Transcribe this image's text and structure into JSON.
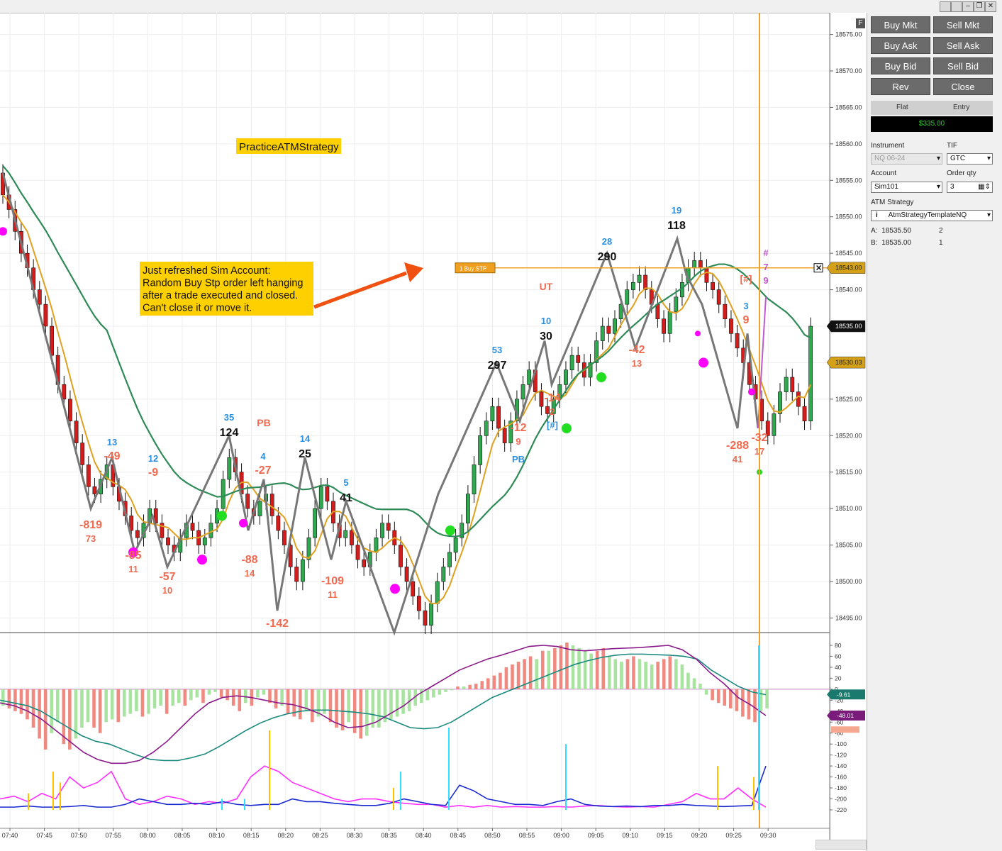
{
  "window": {
    "buttons": [
      "minimize-strip",
      "minimize",
      "restore",
      "close"
    ]
  },
  "chart_data": {
    "type": "candlestick",
    "instrument_label": "PracticeATMStrategy",
    "annotation_text": [
      "Just refreshed Sim Account:",
      "Random Buy Stp order left hanging",
      "after a trade executed and closed.",
      "Can't close it or move it."
    ],
    "price_axis": {
      "min": 18493,
      "max": 18577,
      "ticks": [
        "18575.00",
        "18570.00",
        "18565.00",
        "18560.00",
        "18555.00",
        "18550.00",
        "18545.00",
        "18540.00",
        "18535.00",
        "18530.00",
        "18525.00",
        "18520.00",
        "18515.00",
        "18510.00",
        "18505.00",
        "18500.00",
        "18495.00"
      ]
    },
    "time_axis": {
      "ticks": [
        "07:40",
        "07:45",
        "07:50",
        "07:55",
        "08:00",
        "08:05",
        "08:10",
        "08:15",
        "08:20",
        "08:25",
        "08:30",
        "08:35",
        "08:40",
        "08:45",
        "08:50",
        "08:55",
        "09:00",
        "09:05",
        "09:10",
        "09:15",
        "09:20",
        "09:25",
        "09:30"
      ]
    },
    "price_tags": [
      {
        "label": "18543.00",
        "price": 18543.0,
        "color": "#d4a017"
      },
      {
        "label": "18535.00",
        "price": 18535.0,
        "color": "#111111"
      },
      {
        "label": "18530.03",
        "price": 18530.03,
        "color": "#d4a017"
      }
    ],
    "order_line": {
      "label": "1  Buy STP",
      "price": 18543.0
    },
    "zigzag_labels": [
      {
        "top": "",
        "value": "-819",
        "sub": "73",
        "kind": "low"
      },
      {
        "top": "13",
        "value": "-49",
        "sub": "",
        "kind": "mid"
      },
      {
        "top": "",
        "value": "-85",
        "sub": "11",
        "kind": "low"
      },
      {
        "top": "12",
        "value": "-9",
        "sub": "",
        "kind": "mid"
      },
      {
        "top": "",
        "value": "-57",
        "sub": "10",
        "kind": "low"
      },
      {
        "top": "35",
        "value": "124",
        "sub": "",
        "kind": "high"
      },
      {
        "top": "PB",
        "value": "",
        "sub": "",
        "kind": "tag"
      },
      {
        "top": "4",
        "value": "-27",
        "sub": "",
        "kind": "mid"
      },
      {
        "top": "",
        "value": "-88",
        "sub": "14",
        "kind": "low"
      },
      {
        "top": "",
        "value": "-142",
        "sub": "",
        "kind": "low"
      },
      {
        "top": "14",
        "value": "25",
        "sub": "",
        "kind": "high"
      },
      {
        "top": "",
        "value": "-109",
        "sub": "11",
        "kind": "low"
      },
      {
        "top": "5",
        "value": "41",
        "sub": "",
        "kind": "high"
      },
      {
        "top": "53",
        "value": "297",
        "sub": "",
        "kind": "high"
      },
      {
        "top": "",
        "value": "-12",
        "sub": "9",
        "kind": "low"
      },
      {
        "top": "PB",
        "value": "",
        "sub": "",
        "kind": "tagblue"
      },
      {
        "top": "UT",
        "value": "",
        "sub": "",
        "kind": "tag"
      },
      {
        "top": "10",
        "value": "30",
        "sub": "",
        "kind": "high"
      },
      {
        "top": "",
        "value": "-14",
        "sub": "2",
        "kind": "low"
      },
      {
        "top": "[#]",
        "value": "",
        "sub": "",
        "kind": "tagblue"
      },
      {
        "top": "28",
        "value": "290",
        "sub": "",
        "kind": "high"
      },
      {
        "top": "",
        "value": "-42",
        "sub": "13",
        "kind": "low"
      },
      {
        "top": "19",
        "value": "118",
        "sub": "",
        "kind": "high"
      },
      {
        "top": "[#]",
        "value": "",
        "sub": "",
        "kind": "tag"
      },
      {
        "top": "3",
        "value": "9",
        "sub": "",
        "kind": "mid"
      },
      {
        "top": "",
        "value": "-288",
        "sub": "41",
        "kind": "low"
      },
      {
        "top": "",
        "value": "-32",
        "sub": "17",
        "kind": "low"
      },
      {
        "top": "#",
        "value": "7",
        "sub": "9",
        "kind": "purple"
      }
    ],
    "oscillator": {
      "ticks": [
        "80",
        "60",
        "40",
        "20",
        "0",
        "-20",
        "-40",
        "-60",
        "-80",
        "-100",
        "-120",
        "-140",
        "-160",
        "-180",
        "-200",
        "-220"
      ],
      "tags": [
        {
          "label": "-9.61",
          "value": -9.61,
          "color": "#1a7a6e"
        },
        {
          "label": "-48.01",
          "value": -48.01,
          "color": "#7a1a7a"
        }
      ],
      "shown_labels": [
        "-20",
        "-60"
      ]
    }
  },
  "panel": {
    "buttons": [
      {
        "name": "buy-mkt-button",
        "label": "Buy Mkt"
      },
      {
        "name": "sell-mkt-button",
        "label": "Sell Mkt"
      },
      {
        "name": "buy-ask-button",
        "label": "Buy Ask"
      },
      {
        "name": "sell-ask-button",
        "label": "Sell Ask"
      },
      {
        "name": "buy-bid-button",
        "label": "Buy Bid"
      },
      {
        "name": "sell-bid-button",
        "label": "Sell Bid"
      },
      {
        "name": "rev-button",
        "label": "Rev"
      },
      {
        "name": "close-button",
        "label": "Close"
      }
    ],
    "position": {
      "flat": "Flat",
      "entry": "Entry",
      "pnl": "$335.00"
    },
    "instrument_label": "Instrument",
    "instrument_value": "NQ 06-24",
    "tif_label": "TIF",
    "tif_value": "GTC",
    "account_label": "Account",
    "account_value": "Sim101",
    "qty_label": "Order qty",
    "qty_value": "3",
    "atm_label": "ATM Strategy",
    "atm_info": "i",
    "atm_value": "AtmStrategyTemplateNQ",
    "ask_label": "A:",
    "ask_price": "18535.50",
    "ask_size": "2",
    "bid_label": "B:",
    "bid_price": "18535.00",
    "bid_size": "1"
  },
  "misc": {
    "f_box": "F"
  }
}
